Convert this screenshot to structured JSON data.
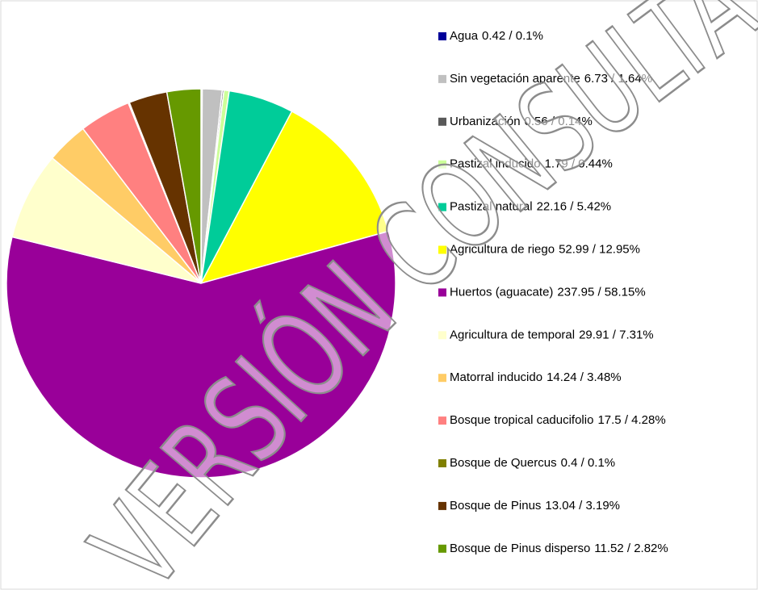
{
  "chart_data": {
    "type": "pie",
    "categories": [
      "Agua",
      "Sin vegetación aparente",
      "Urbanización",
      "Pastizal inducido",
      "Pastizal natural",
      "Agricultura de riego",
      "Huertos (aguacate)",
      "Agricultura de temporal",
      "Matorral inducido",
      "Bosque tropical caducifolio",
      "Bosque de Quercus",
      "Bosque de Pinus",
      "Bosque de Pinus disperso"
    ],
    "values": [
      0.42,
      6.73,
      0.56,
      1.79,
      22.16,
      52.99,
      237.95,
      29.91,
      14.24,
      17.5,
      0.4,
      13.04,
      11.52
    ],
    "value_labels": [
      "0.42  / 0.1%",
      "6.73  / 1.64%",
      "0.56  / 0.14%",
      "1.79  / 0.44%",
      "22.16  / 5.42%",
      "52.99  / 12.95%",
      "237.95  / 58.15%",
      "29.91  / 7.31%",
      "14.24  / 3.48%",
      "17.5  / 4.28%",
      "0.4  / 0.1%",
      "13.04  / 3.19%",
      "11.52  / 2.82%"
    ],
    "colors": [
      "#000099",
      "#c0c0c0",
      "#595959",
      "#ccff99",
      "#00cc99",
      "#ffff00",
      "#990099",
      "#ffffcc",
      "#ffcc66",
      "#ff8080",
      "#808000",
      "#663300",
      "#669900"
    ],
    "watermark": "VERSIÓN CONSULTA"
  }
}
